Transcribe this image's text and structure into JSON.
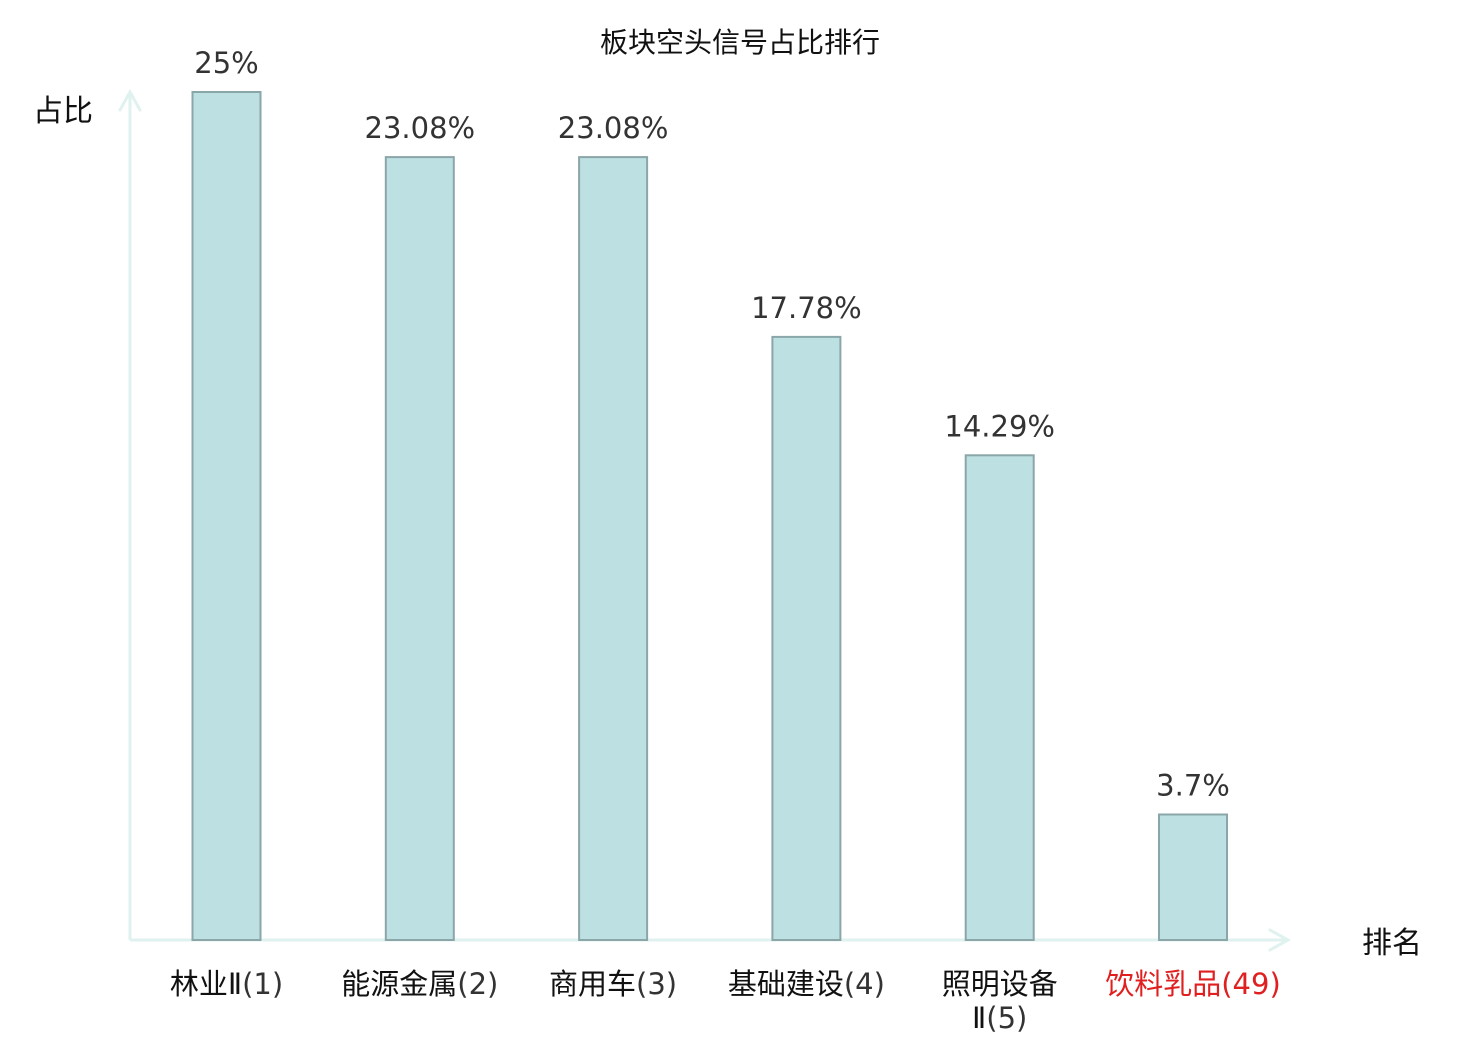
{
  "chart_data": {
    "type": "bar",
    "title": "板块空头信号占比排行",
    "ylabel": "占比",
    "xlabel": "排名",
    "ylim": [
      0,
      25
    ],
    "grid": false,
    "categories": [
      {
        "name": "林业Ⅱ",
        "rank": "(1)",
        "highlight": false
      },
      {
        "name": "能源金属",
        "rank": "(2)",
        "highlight": false
      },
      {
        "name": "商用车",
        "rank": "(3)",
        "highlight": false
      },
      {
        "name": "基础建设",
        "rank": "(4)",
        "highlight": false
      },
      {
        "name": "照明设备Ⅱ",
        "rank": "(5)",
        "highlight": false
      },
      {
        "name": "饮料乳品",
        "rank": "(49)",
        "highlight": true
      }
    ],
    "values": [
      25,
      23.08,
      23.08,
      17.78,
      14.29,
      3.7
    ],
    "value_labels": [
      "25%",
      "23.08%",
      "23.08%",
      "17.78%",
      "14.29%",
      "3.7%"
    ]
  },
  "colors": {
    "bar_fill": "#bde0e2",
    "bar_stroke": "#8aa6a8",
    "axis": "#e0f2ef",
    "text": "#111111",
    "value_text": "#333333",
    "rank_text": "#333333",
    "highlight": "#e02020"
  }
}
